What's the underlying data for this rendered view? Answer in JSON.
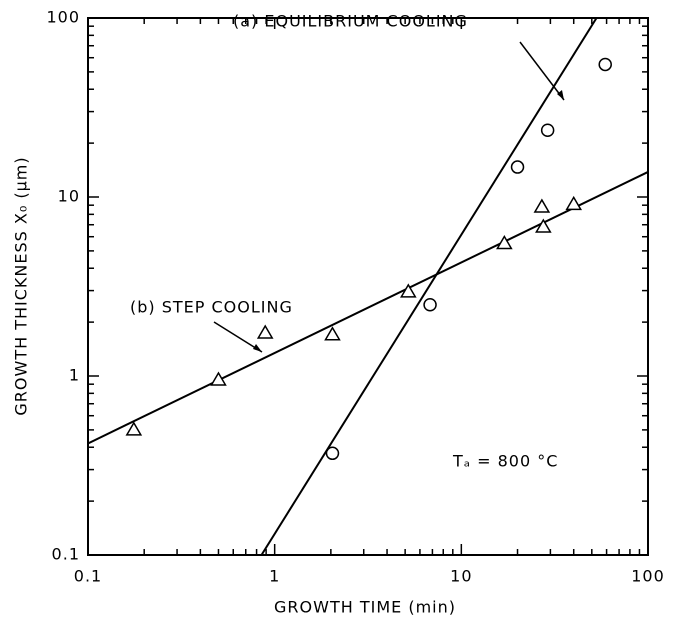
{
  "chart_data": {
    "type": "scatter",
    "xlabel": "GROWTH TIME (min)",
    "ylabel": "GROWTH THICKNESS X₀ (μm)",
    "xscale": "log",
    "yscale": "log",
    "xlim": [
      0.1,
      100
    ],
    "ylim": [
      0.1,
      100
    ],
    "xticks": [
      0.1,
      1,
      10,
      100
    ],
    "yticks": [
      0.1,
      1,
      10,
      100
    ],
    "xminorticks": [
      0.2,
      0.3,
      0.4,
      0.5,
      0.6,
      0.7,
      0.8,
      0.9,
      2,
      3,
      4,
      5,
      6,
      7,
      8,
      9,
      20,
      30,
      40,
      50,
      60,
      70,
      80,
      90
    ],
    "yminorticks": [
      0.2,
      0.3,
      0.4,
      0.5,
      0.6,
      0.7,
      0.8,
      0.9,
      2,
      3,
      4,
      5,
      6,
      7,
      8,
      9,
      20,
      30,
      40,
      50,
      60,
      70,
      80,
      90
    ],
    "series": [
      {
        "name": "(a) EQUILIBRIUM COOLING",
        "marker": "circle",
        "color": "#000000",
        "x": [
          2.04,
          6.8,
          20,
          29,
          59
        ],
        "values": [
          0.37,
          2.5,
          14.7,
          23.6,
          55
        ],
        "fit_x": [
          0.85,
          53
        ],
        "fit_y": [
          0.1,
          100
        ]
      },
      {
        "name": "(b) STEP COOLING",
        "marker": "triangle",
        "color": "#000000",
        "x": [
          0.176,
          0.5,
          0.89,
          2.04,
          5.2,
          17,
          27,
          27.5,
          40
        ],
        "values": [
          0.5,
          0.95,
          1.74,
          1.7,
          2.95,
          5.5,
          8.8,
          6.8,
          9.1
        ],
        "fit_x": [
          0.1,
          100
        ],
        "fit_y": [
          0.42,
          13.8
        ]
      }
    ],
    "annotation": "Tₐ = 800 °C"
  }
}
